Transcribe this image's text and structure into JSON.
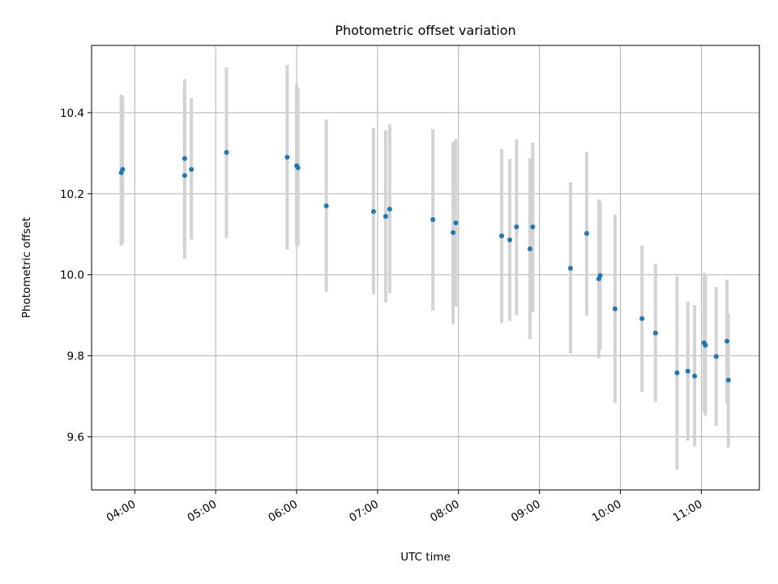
{
  "chart_data": {
    "type": "scatter",
    "title": "Photometric offset variation",
    "xlabel": "UTC time",
    "ylabel": "Photometric offset",
    "x_ticks": [
      "04:00",
      "05:00",
      "06:00",
      "07:00",
      "08:00",
      "09:00",
      "10:00",
      "11:00"
    ],
    "y_ticks": [
      "9.6",
      "9.8",
      "10.0",
      "10.2",
      "10.4"
    ],
    "xlim": [
      "03:28",
      "11:43"
    ],
    "ylim": [
      9.469,
      10.566
    ],
    "grid": true,
    "marker_color": "#1f77b4",
    "errorbar_color": "#d3d3d3",
    "points": [
      {
        "t": "03:50",
        "y": 10.252,
        "lo": 10.072,
        "hi": 10.444
      },
      {
        "t": "03:51",
        "y": 10.26,
        "lo": 10.078,
        "hi": 10.44
      },
      {
        "t": "04:37",
        "y": 10.245,
        "lo": 10.04,
        "hi": 10.483
      },
      {
        "t": "04:37",
        "y": 10.287,
        "lo": 10.06,
        "hi": 10.47
      },
      {
        "t": "04:42",
        "y": 10.26,
        "lo": 10.087,
        "hi": 10.436
      },
      {
        "t": "05:08",
        "y": 10.302,
        "lo": 10.09,
        "hi": 10.512
      },
      {
        "t": "05:53",
        "y": 10.29,
        "lo": 10.062,
        "hi": 10.518
      },
      {
        "t": "06:00",
        "y": 10.269,
        "lo": 10.072,
        "hi": 10.47
      },
      {
        "t": "06:01",
        "y": 10.264,
        "lo": 10.07,
        "hi": 10.462
      },
      {
        "t": "06:22",
        "y": 10.17,
        "lo": 9.958,
        "hi": 10.383
      },
      {
        "t": "06:57",
        "y": 10.156,
        "lo": 9.952,
        "hi": 10.362
      },
      {
        "t": "07:06",
        "y": 10.144,
        "lo": 9.932,
        "hi": 10.356
      },
      {
        "t": "07:09",
        "y": 10.162,
        "lo": 9.955,
        "hi": 10.371
      },
      {
        "t": "07:41",
        "y": 10.136,
        "lo": 9.912,
        "hi": 10.359
      },
      {
        "t": "07:56",
        "y": 10.104,
        "lo": 9.878,
        "hi": 10.328
      },
      {
        "t": "07:58",
        "y": 10.128,
        "lo": 9.922,
        "hi": 10.335
      },
      {
        "t": "08:32",
        "y": 10.096,
        "lo": 9.882,
        "hi": 10.31
      },
      {
        "t": "08:38",
        "y": 10.086,
        "lo": 9.886,
        "hi": 10.286
      },
      {
        "t": "08:43",
        "y": 10.118,
        "lo": 9.9,
        "hi": 10.334
      },
      {
        "t": "08:53",
        "y": 10.064,
        "lo": 9.841,
        "hi": 10.288
      },
      {
        "t": "08:55",
        "y": 10.118,
        "lo": 9.908,
        "hi": 10.326
      },
      {
        "t": "09:23",
        "y": 10.016,
        "lo": 9.806,
        "hi": 10.228
      },
      {
        "t": "09:35",
        "y": 10.102,
        "lo": 9.899,
        "hi": 10.303
      },
      {
        "t": "09:44",
        "y": 9.99,
        "lo": 9.794,
        "hi": 10.186
      },
      {
        "t": "09:45",
        "y": 9.998,
        "lo": 9.814,
        "hi": 10.182
      },
      {
        "t": "09:56",
        "y": 9.916,
        "lo": 9.683,
        "hi": 10.148
      },
      {
        "t": "10:16",
        "y": 9.892,
        "lo": 9.711,
        "hi": 10.072
      },
      {
        "t": "10:26",
        "y": 9.856,
        "lo": 9.686,
        "hi": 10.027
      },
      {
        "t": "10:42",
        "y": 9.758,
        "lo": 9.519,
        "hi": 9.996
      },
      {
        "t": "10:50",
        "y": 9.762,
        "lo": 9.59,
        "hi": 9.934
      },
      {
        "t": "10:55",
        "y": 9.75,
        "lo": 9.576,
        "hi": 9.925
      },
      {
        "t": "11:02",
        "y": 9.832,
        "lo": 9.66,
        "hi": 10.005
      },
      {
        "t": "11:03",
        "y": 9.826,
        "lo": 9.652,
        "hi": 10.0
      },
      {
        "t": "11:11",
        "y": 9.798,
        "lo": 9.627,
        "hi": 9.97
      },
      {
        "t": "11:19",
        "y": 9.836,
        "lo": 9.683,
        "hi": 9.988
      },
      {
        "t": "11:20",
        "y": 9.74,
        "lo": 9.574,
        "hi": 9.904
      }
    ]
  }
}
